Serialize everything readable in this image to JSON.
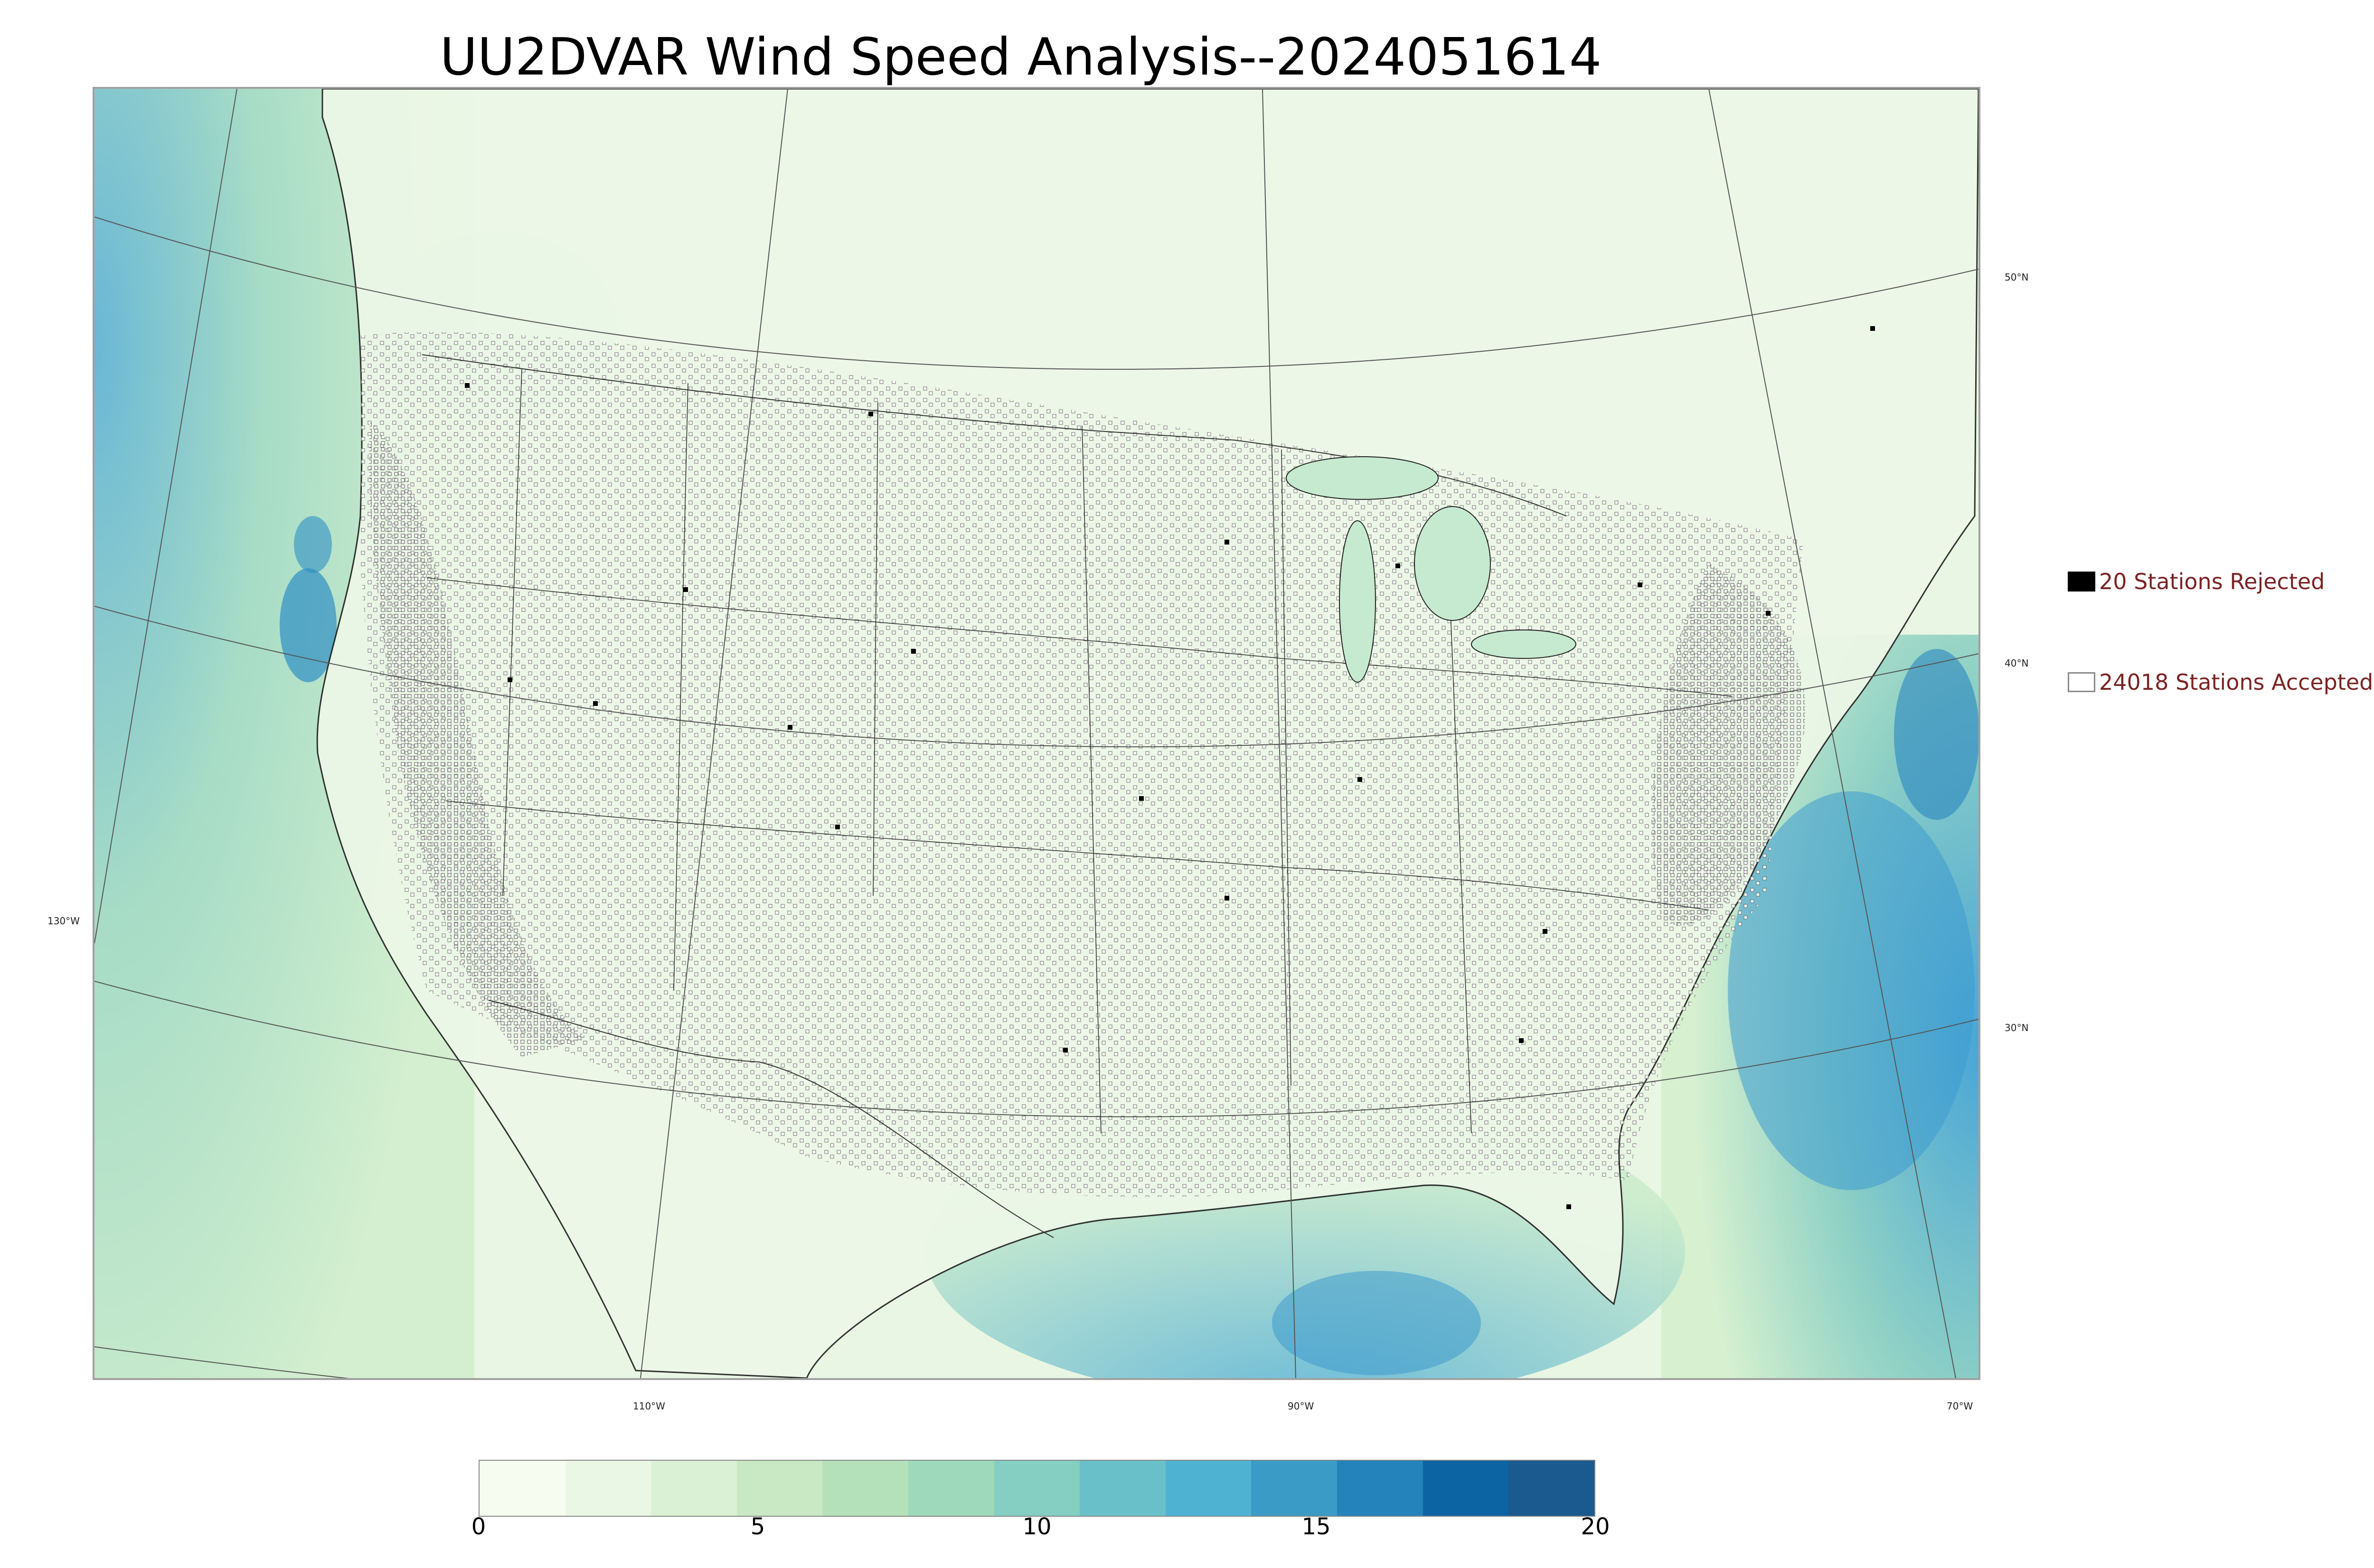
{
  "title": "UU2DVAR Wind Speed Analysis--2024051614",
  "map": {
    "projection": "lambert-conformal",
    "field": "wind speed",
    "colormap": "GnBu",
    "lat_labels": [
      "50°N",
      "40°N",
      "30°N"
    ],
    "lon_labels": [
      "130°W",
      "110°W",
      "90°W",
      "70°W"
    ],
    "land_color": "#eef8ea",
    "ocean_tint": "#7fc4d6",
    "strong_wind_color": "#3d9bd0",
    "border_color": "#333333",
    "station_marker": "open-square"
  },
  "legend": [
    {
      "label": "20 Stations Rejected",
      "marker": "filled-black-square"
    },
    {
      "label": "24018 Stations Accepted",
      "marker": "open-square"
    }
  ],
  "stations": {
    "rejected": 20,
    "accepted": 24018
  },
  "colorbar": {
    "min": 0,
    "max": 20,
    "ticks": [
      "0",
      "5",
      "10",
      "15",
      "20"
    ],
    "colors": [
      "#f7fcf0",
      "#eaf7e4",
      "#dbf1d5",
      "#c8e9c3",
      "#b4e1ba",
      "#9ed9bb",
      "#84cec2",
      "#69c0c9",
      "#4eb3d3",
      "#399bc6",
      "#2383ba",
      "#0d64a2",
      "#1a5a8f"
    ]
  }
}
